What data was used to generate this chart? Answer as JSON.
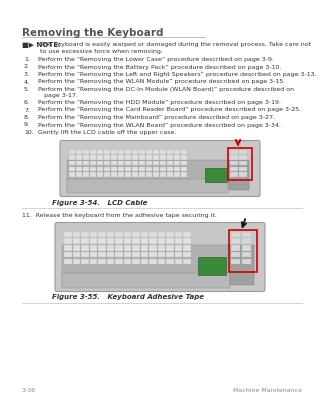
{
  "page_bg": "#ffffff",
  "title": "Removing the Keyboard",
  "title_color": "#555555",
  "title_fontsize": 7.5,
  "note_label": "■▶ NOTE:",
  "note_text": "The keyboard is easily warped or damaged during the removal process. Take care not\nto use excessive force when removing.",
  "steps": [
    "Perform the “Removing the Lower Case” procedure described on page 3-9.",
    "Perform the “Removing the Battery Pack” procedure described on page 3-10.",
    "Perform the “Removing the Left and Right Speakers” procedure described on page 3-13.",
    "Perform the “Removing the WLAN Module” procedure described on page 3-15.",
    "Perform the “Removing the DC-In Module (WLAN Board)” procedure described on page 3-17.",
    "Perform the “Removing the HDD Module” procedure described on page 3-19.",
    "Perform the “Removing the Card Reader Board” procedure described on page 3-25.",
    "Perform the “Removing the Mainboard” procedure described on page 3-27.",
    "Perform the “Removing the WLAN Board” procedure described on page 3-34.",
    "Gently lift the LCD cable off the upper case."
  ],
  "link_color": "#5555cc",
  "text_color": "#333333",
  "fig1_label": "Figure 3-54.   LCD Cable",
  "fig2_label": "Figure 3-55.   Keyboard Adhesive Tape",
  "step11_text": "11.  Release the keyboard from the adhesive tape securing it.",
  "footer_left": "3-36",
  "footer_right": "Machine Maintenance",
  "footer_color": "#888888",
  "body_fontsize": 4.8,
  "fig_label_fontsize": 5.0,
  "footer_fontsize": 4.5
}
